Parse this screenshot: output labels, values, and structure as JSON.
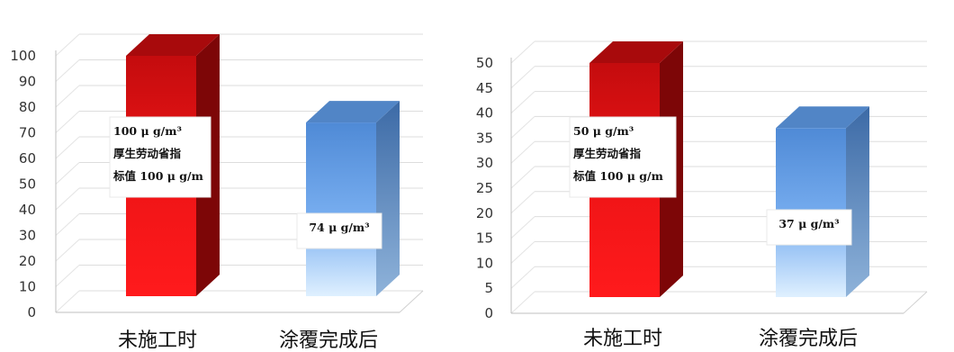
{
  "chart_data": [
    {
      "type": "bar",
      "categories": [
        "未施工时",
        "涂覆完成后"
      ],
      "values": [
        100,
        74
      ],
      "ylim": [
        0,
        100
      ],
      "ytick_step": 10,
      "bar_colors": [
        "#e41214",
        "#5d95d9"
      ],
      "grid": true,
      "annotations": [
        [
          "100 μ g/m³",
          "厚生劳动省指",
          "标值 100 μ g/m"
        ],
        [
          "74 μ g/m³"
        ]
      ]
    },
    {
      "type": "bar",
      "categories": [
        "未施工时",
        "涂覆完成后"
      ],
      "values": [
        50,
        37
      ],
      "ylim": [
        0,
        50
      ],
      "ytick_step": 5,
      "bar_colors": [
        "#e41214",
        "#5d95d9"
      ],
      "grid": true,
      "annotations": [
        [
          "50 μ g/m³",
          "厚生劳动省指",
          "标值 100 μ g/m"
        ],
        [
          "37 μ g/m³"
        ]
      ]
    }
  ]
}
